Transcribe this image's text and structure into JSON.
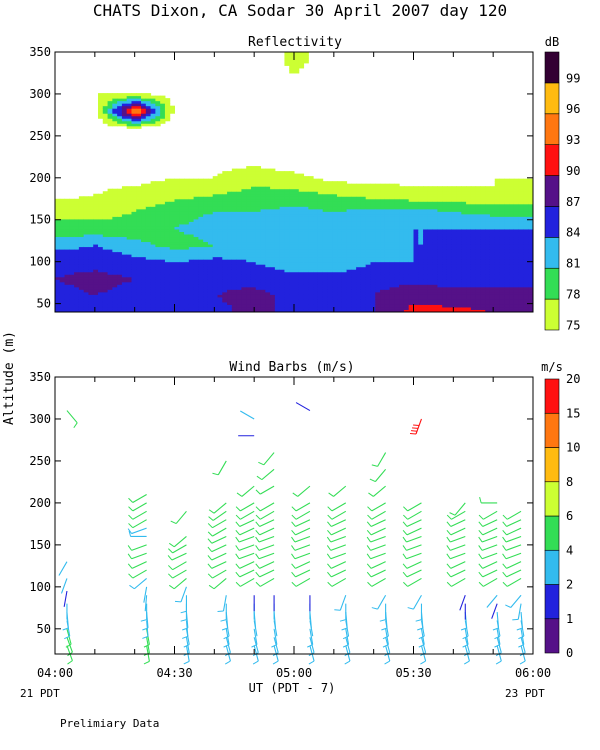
{
  "figure": {
    "title": "CHATS Dixon, CA  Sodar  30 April 2007  day 120",
    "ylabel": "Altitude (m)",
    "xlabel": "UT  (PDT - 7)",
    "left_note": "21 PDT",
    "right_note": "23 PDT",
    "footer": "Prelimiary Data"
  },
  "chart_data": [
    {
      "type": "heatmap",
      "title": "Reflectivity",
      "legend_title": "dB",
      "x": [
        "04:00",
        "04:10",
        "04:20",
        "04:30",
        "04:40",
        "04:50",
        "05:00",
        "05:10",
        "05:20",
        "05:30",
        "05:40",
        "05:50",
        "06:00"
      ],
      "xtick_labels": [
        "04:00",
        "04:30",
        "05:00",
        "05:30",
        "06:00"
      ],
      "y": [
        40,
        60,
        80,
        100,
        120,
        140,
        160,
        180,
        200,
        220,
        240,
        260,
        280,
        300,
        320,
        340
      ],
      "yticks": [
        50,
        100,
        150,
        200,
        250,
        300,
        350
      ],
      "ylim": [
        40,
        350
      ],
      "levels": [
        75,
        78,
        81,
        84,
        87,
        90,
        93,
        96,
        99
      ],
      "colors": [
        "#ccff33",
        "#33dd55",
        "#33bbee",
        "#2222dd",
        "#551188",
        "#ff1111",
        "#ff7711",
        "#ffbb11",
        "#330033"
      ],
      "z": [
        [
          86,
          87,
          86,
          86,
          86,
          88,
          86,
          86,
          87,
          91,
          91,
          90,
          90
        ],
        [
          86,
          87,
          86,
          86,
          87,
          88,
          86,
          86,
          87,
          89,
          88,
          88,
          88
        ],
        [
          87,
          88,
          87,
          86,
          86,
          86,
          85,
          85,
          86,
          86,
          86,
          86,
          86
        ],
        [
          86,
          86,
          85,
          84,
          85,
          84,
          82,
          82,
          84,
          84,
          85,
          86,
          86
        ],
        [
          83,
          84,
          82,
          80,
          81,
          82,
          82,
          82,
          83,
          84,
          84,
          85,
          85
        ],
        [
          79,
          79,
          79,
          81,
          82,
          82,
          82,
          83,
          84,
          84,
          84,
          84,
          84
        ],
        [
          77,
          77,
          78,
          80,
          81,
          81,
          82,
          81,
          82,
          82,
          81,
          80,
          80
        ],
        [
          74,
          75,
          76,
          77,
          78,
          79,
          79,
          78,
          77,
          76,
          76,
          75,
          75
        ],
        [
          73,
          74,
          74,
          75,
          75,
          77,
          76,
          74,
          74,
          74,
          74,
          75,
          75
        ],
        [
          73,
          73,
          74,
          73,
          74,
          74,
          73,
          73,
          73,
          72,
          73,
          73,
          72
        ],
        [
          73,
          73,
          73,
          73,
          74,
          73,
          72,
          72,
          73,
          72,
          72,
          72,
          72
        ],
        [
          73,
          73,
          75,
          73,
          74,
          73,
          72,
          72,
          73,
          72,
          72,
          73,
          72
        ],
        [
          73,
          73,
          97,
          74,
          73,
          73,
          72,
          72,
          73,
          72,
          72,
          72,
          72
        ],
        [
          74,
          75,
          75,
          74,
          73,
          73,
          72,
          72,
          73,
          73,
          72,
          73,
          72
        ],
        [
          72,
          74,
          73,
          73,
          72,
          72,
          75,
          72,
          73,
          72,
          72,
          72,
          72
        ],
        [
          72,
          72,
          72,
          72,
          72,
          72,
          76,
          73,
          72,
          72,
          72,
          72,
          72
        ]
      ]
    },
    {
      "type": "scatter",
      "title": "Wind Barbs (m/s)",
      "legend_title": "m/s",
      "xtick_labels": [
        "04:00",
        "04:30",
        "05:00",
        "05:30",
        "06:00"
      ],
      "yticks": [
        50,
        100,
        150,
        200,
        250,
        300,
        350
      ],
      "ylim": [
        20,
        350
      ],
      "levels": [
        0,
        1,
        2,
        4,
        6,
        8,
        10,
        15,
        20
      ],
      "colors": [
        "#551188",
        "#2222dd",
        "#33bbee",
        "#33dd55",
        "#ccff33",
        "#ffbb11",
        "#ff7711",
        "#ff1111"
      ],
      "columns": [
        {
          "t": "04:03",
          "alts": [
            30,
            40,
            50,
            60,
            70,
            80,
            95,
            110,
            130,
            310
          ],
          "speeds": [
            4,
            4,
            4,
            3,
            3,
            2,
            1,
            2,
            2,
            4
          ],
          "dirs": [
            160,
            160,
            165,
            170,
            175,
            180,
            190,
            200,
            210,
            140
          ]
        },
        {
          "t": "04:23",
          "alts": [
            30,
            40,
            50,
            60,
            70,
            80,
            90,
            100,
            110,
            120,
            130,
            140,
            150,
            160,
            170,
            180,
            190,
            200,
            210
          ],
          "speeds": [
            4,
            4,
            4,
            3,
            3,
            3,
            2,
            2,
            3,
            4,
            4,
            4,
            4,
            3,
            3,
            4,
            5,
            5,
            5
          ],
          "dirs": [
            170,
            170,
            170,
            175,
            175,
            180,
            185,
            190,
            230,
            240,
            245,
            250,
            250,
            270,
            250,
            240,
            240,
            240,
            240
          ]
        },
        {
          "t": "04:33",
          "alts": [
            30,
            40,
            50,
            60,
            70,
            80,
            90,
            100,
            110,
            120,
            130,
            140,
            150,
            160,
            190
          ],
          "speeds": [
            3,
            3,
            3,
            3,
            3,
            3,
            3,
            3,
            4,
            4,
            4,
            4,
            4,
            4,
            5
          ],
          "dirs": [
            170,
            170,
            170,
            175,
            175,
            180,
            180,
            200,
            230,
            240,
            240,
            245,
            240,
            230,
            220
          ]
        },
        {
          "t": "04:43",
          "alts": [
            30,
            40,
            50,
            60,
            70,
            80,
            90,
            110,
            120,
            130,
            140,
            150,
            160,
            170,
            180,
            190,
            200,
            250
          ],
          "speeds": [
            3,
            3,
            3,
            3,
            3,
            3,
            3,
            4,
            4,
            4,
            4,
            4,
            4,
            4,
            4,
            5,
            5,
            5
          ],
          "dirs": [
            165,
            165,
            170,
            170,
            175,
            180,
            190,
            230,
            240,
            245,
            245,
            245,
            245,
            240,
            240,
            235,
            230,
            210
          ]
        },
        {
          "t": "04:50",
          "alts": [
            30,
            40,
            50,
            60,
            70,
            80,
            90,
            110,
            120,
            130,
            140,
            150,
            160,
            170,
            180,
            190,
            200,
            220,
            280,
            300
          ],
          "speeds": [
            3,
            3,
            3,
            2,
            2,
            2,
            1,
            4,
            4,
            4,
            4,
            4,
            4,
            4,
            4,
            4,
            4,
            5,
            1,
            2
          ],
          "dirs": [
            165,
            165,
            170,
            170,
            175,
            180,
            180,
            240,
            245,
            245,
            250,
            250,
            250,
            245,
            245,
            240,
            240,
            230,
            270,
            300
          ]
        },
        {
          "t": "04:55",
          "alts": [
            30,
            40,
            50,
            60,
            70,
            80,
            90,
            110,
            120,
            130,
            140,
            150,
            160,
            170,
            180,
            190,
            200,
            220,
            240,
            260
          ],
          "speeds": [
            3,
            3,
            3,
            2,
            2,
            2,
            1,
            4,
            4,
            4,
            4,
            4,
            4,
            4,
            4,
            4,
            4,
            5,
            5,
            5
          ],
          "dirs": [
            165,
            165,
            170,
            170,
            175,
            180,
            180,
            240,
            245,
            245,
            250,
            250,
            250,
            245,
            245,
            240,
            240,
            240,
            230,
            220
          ]
        },
        {
          "t": "05:04",
          "alts": [
            30,
            40,
            50,
            60,
            70,
            80,
            90,
            110,
            120,
            130,
            140,
            150,
            160,
            170,
            180,
            190,
            200,
            220,
            310
          ],
          "speeds": [
            3,
            3,
            3,
            2,
            2,
            2,
            1,
            4,
            4,
            4,
            4,
            4,
            4,
            4,
            4,
            4,
            4,
            5,
            1
          ],
          "dirs": [
            165,
            165,
            170,
            170,
            175,
            180,
            180,
            240,
            245,
            245,
            250,
            250,
            250,
            245,
            245,
            240,
            240,
            230,
            300
          ]
        },
        {
          "t": "05:13",
          "alts": [
            30,
            40,
            50,
            60,
            70,
            80,
            90,
            110,
            120,
            130,
            140,
            150,
            160,
            170,
            180,
            190,
            200,
            220
          ],
          "speeds": [
            3,
            3,
            3,
            3,
            3,
            3,
            3,
            4,
            4,
            4,
            4,
            4,
            4,
            4,
            4,
            4,
            4,
            5
          ],
          "dirs": [
            165,
            165,
            170,
            170,
            175,
            180,
            200,
            240,
            245,
            245,
            250,
            250,
            250,
            245,
            245,
            240,
            240,
            230
          ]
        },
        {
          "t": "05:23",
          "alts": [
            30,
            40,
            50,
            60,
            70,
            80,
            90,
            110,
            120,
            130,
            140,
            150,
            160,
            170,
            180,
            190,
            200,
            220,
            240,
            260
          ],
          "speeds": [
            3,
            3,
            3,
            3,
            3,
            3,
            3,
            4,
            4,
            4,
            4,
            4,
            4,
            4,
            4,
            4,
            4,
            5,
            5,
            5
          ],
          "dirs": [
            165,
            165,
            170,
            170,
            175,
            180,
            210,
            240,
            245,
            245,
            250,
            250,
            250,
            245,
            245,
            240,
            240,
            230,
            220,
            210
          ]
        },
        {
          "t": "05:32",
          "alts": [
            30,
            40,
            50,
            60,
            70,
            80,
            90,
            110,
            120,
            130,
            140,
            150,
            160,
            170,
            180,
            190,
            200,
            300
          ],
          "speeds": [
            3,
            3,
            3,
            3,
            3,
            3,
            3,
            4,
            4,
            4,
            4,
            4,
            4,
            4,
            4,
            4,
            4,
            20
          ],
          "dirs": [
            165,
            165,
            170,
            170,
            175,
            180,
            210,
            240,
            245,
            245,
            250,
            250,
            250,
            245,
            245,
            240,
            240,
            200
          ]
        },
        {
          "t": "05:43",
          "alts": [
            30,
            40,
            50,
            60,
            70,
            80,
            90,
            110,
            120,
            130,
            140,
            150,
            160,
            170,
            180,
            190,
            200
          ],
          "speeds": [
            3,
            3,
            3,
            3,
            3,
            1,
            1,
            4,
            4,
            4,
            4,
            4,
            4,
            4,
            4,
            4,
            5
          ],
          "dirs": [
            165,
            165,
            170,
            170,
            175,
            180,
            200,
            240,
            245,
            245,
            250,
            250,
            250,
            245,
            245,
            240,
            220
          ]
        },
        {
          "t": "05:51",
          "alts": [
            30,
            40,
            50,
            60,
            70,
            80,
            90,
            110,
            120,
            130,
            140,
            150,
            160,
            170,
            180,
            190,
            200
          ],
          "speeds": [
            3,
            3,
            3,
            3,
            3,
            1,
            2,
            4,
            4,
            4,
            4,
            4,
            4,
            4,
            4,
            4,
            4
          ],
          "dirs": [
            165,
            165,
            170,
            170,
            175,
            200,
            220,
            240,
            245,
            245,
            250,
            250,
            250,
            245,
            245,
            240,
            270
          ]
        },
        {
          "t": "05:57",
          "alts": [
            30,
            40,
            50,
            60,
            70,
            80,
            90,
            110,
            120,
            130,
            140,
            150,
            160,
            170,
            180,
            190
          ],
          "speeds": [
            3,
            3,
            3,
            3,
            3,
            3,
            3,
            4,
            4,
            4,
            4,
            4,
            4,
            4,
            4,
            5
          ],
          "dirs": [
            165,
            165,
            170,
            170,
            175,
            190,
            220,
            240,
            245,
            245,
            250,
            250,
            250,
            245,
            245,
            240
          ]
        }
      ]
    }
  ]
}
